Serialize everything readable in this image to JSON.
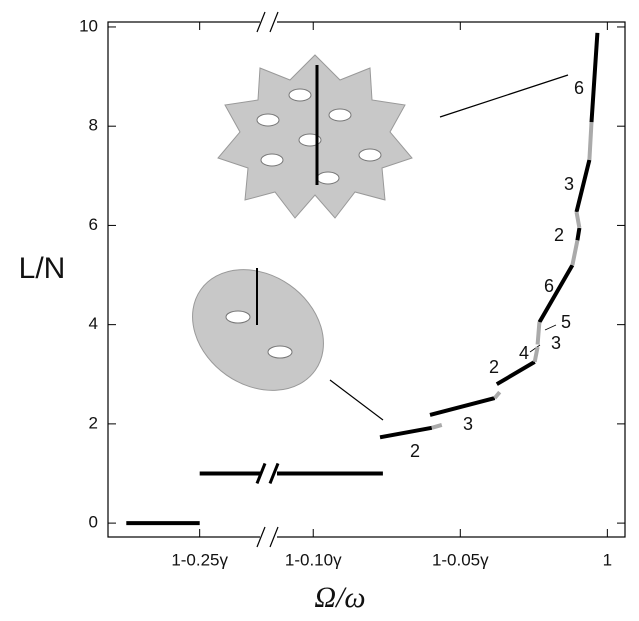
{
  "chart_data": {
    "type": "line",
    "xlabel": "Ω/ω",
    "ylabel": "L/N",
    "xlim": [
      -0.3,
      0.006
    ],
    "xbreak": [
      -0.216,
      -0.113
    ],
    "ylim": [
      -0.28,
      10.1
    ],
    "xticks": [
      {
        "value": -0.25,
        "label": "1-0.25γ"
      },
      {
        "value": -0.1,
        "label": "1-0.10γ"
      },
      {
        "value": -0.05,
        "label": "1-0.05γ"
      },
      {
        "value": 0,
        "label": "1"
      }
    ],
    "yticks": [
      0,
      2,
      4,
      6,
      8,
      10
    ],
    "series": [
      {
        "color": "#000000",
        "x": [
          -0.29,
          -0.25,
          null,
          -0.25,
          -0.0763,
          null,
          -0.0773,
          -0.0597,
          null,
          -0.0603,
          -0.0383,
          null,
          -0.0376,
          -0.0247,
          null,
          -0.0231,
          -0.0119,
          null,
          -0.0102,
          -0.0095,
          null,
          -0.0105,
          -0.0061,
          null,
          -0.0054,
          -0.0034
        ],
        "values": [
          0,
          0,
          null,
          1,
          1,
          null,
          1.73,
          1.92,
          null,
          2.18,
          2.52,
          null,
          2.8,
          3.25,
          null,
          4.05,
          5.2,
          null,
          5.7,
          5.95,
          null,
          6.27,
          7.32,
          null,
          8.08,
          9.88
        ]
      },
      {
        "color": "#aaaaaa",
        "x": [
          -0.0597,
          -0.0563,
          null,
          -0.0383,
          -0.0366,
          null,
          -0.0247,
          -0.0237,
          null,
          -0.0237,
          -0.0231,
          null,
          -0.0119,
          -0.0102,
          null,
          -0.0095,
          -0.0105,
          null,
          -0.0061,
          -0.0054
        ],
        "values": [
          1.92,
          1.98,
          null,
          2.52,
          2.64,
          null,
          3.25,
          3.55,
          null,
          3.6,
          4.05,
          null,
          5.2,
          5.7,
          null,
          5.95,
          6.27,
          null,
          7.32,
          8.08
        ]
      }
    ],
    "annotations": [
      "2",
      "3",
      "2",
      "4",
      "3",
      "5",
      "6",
      "2",
      "3",
      "6"
    ]
  }
}
